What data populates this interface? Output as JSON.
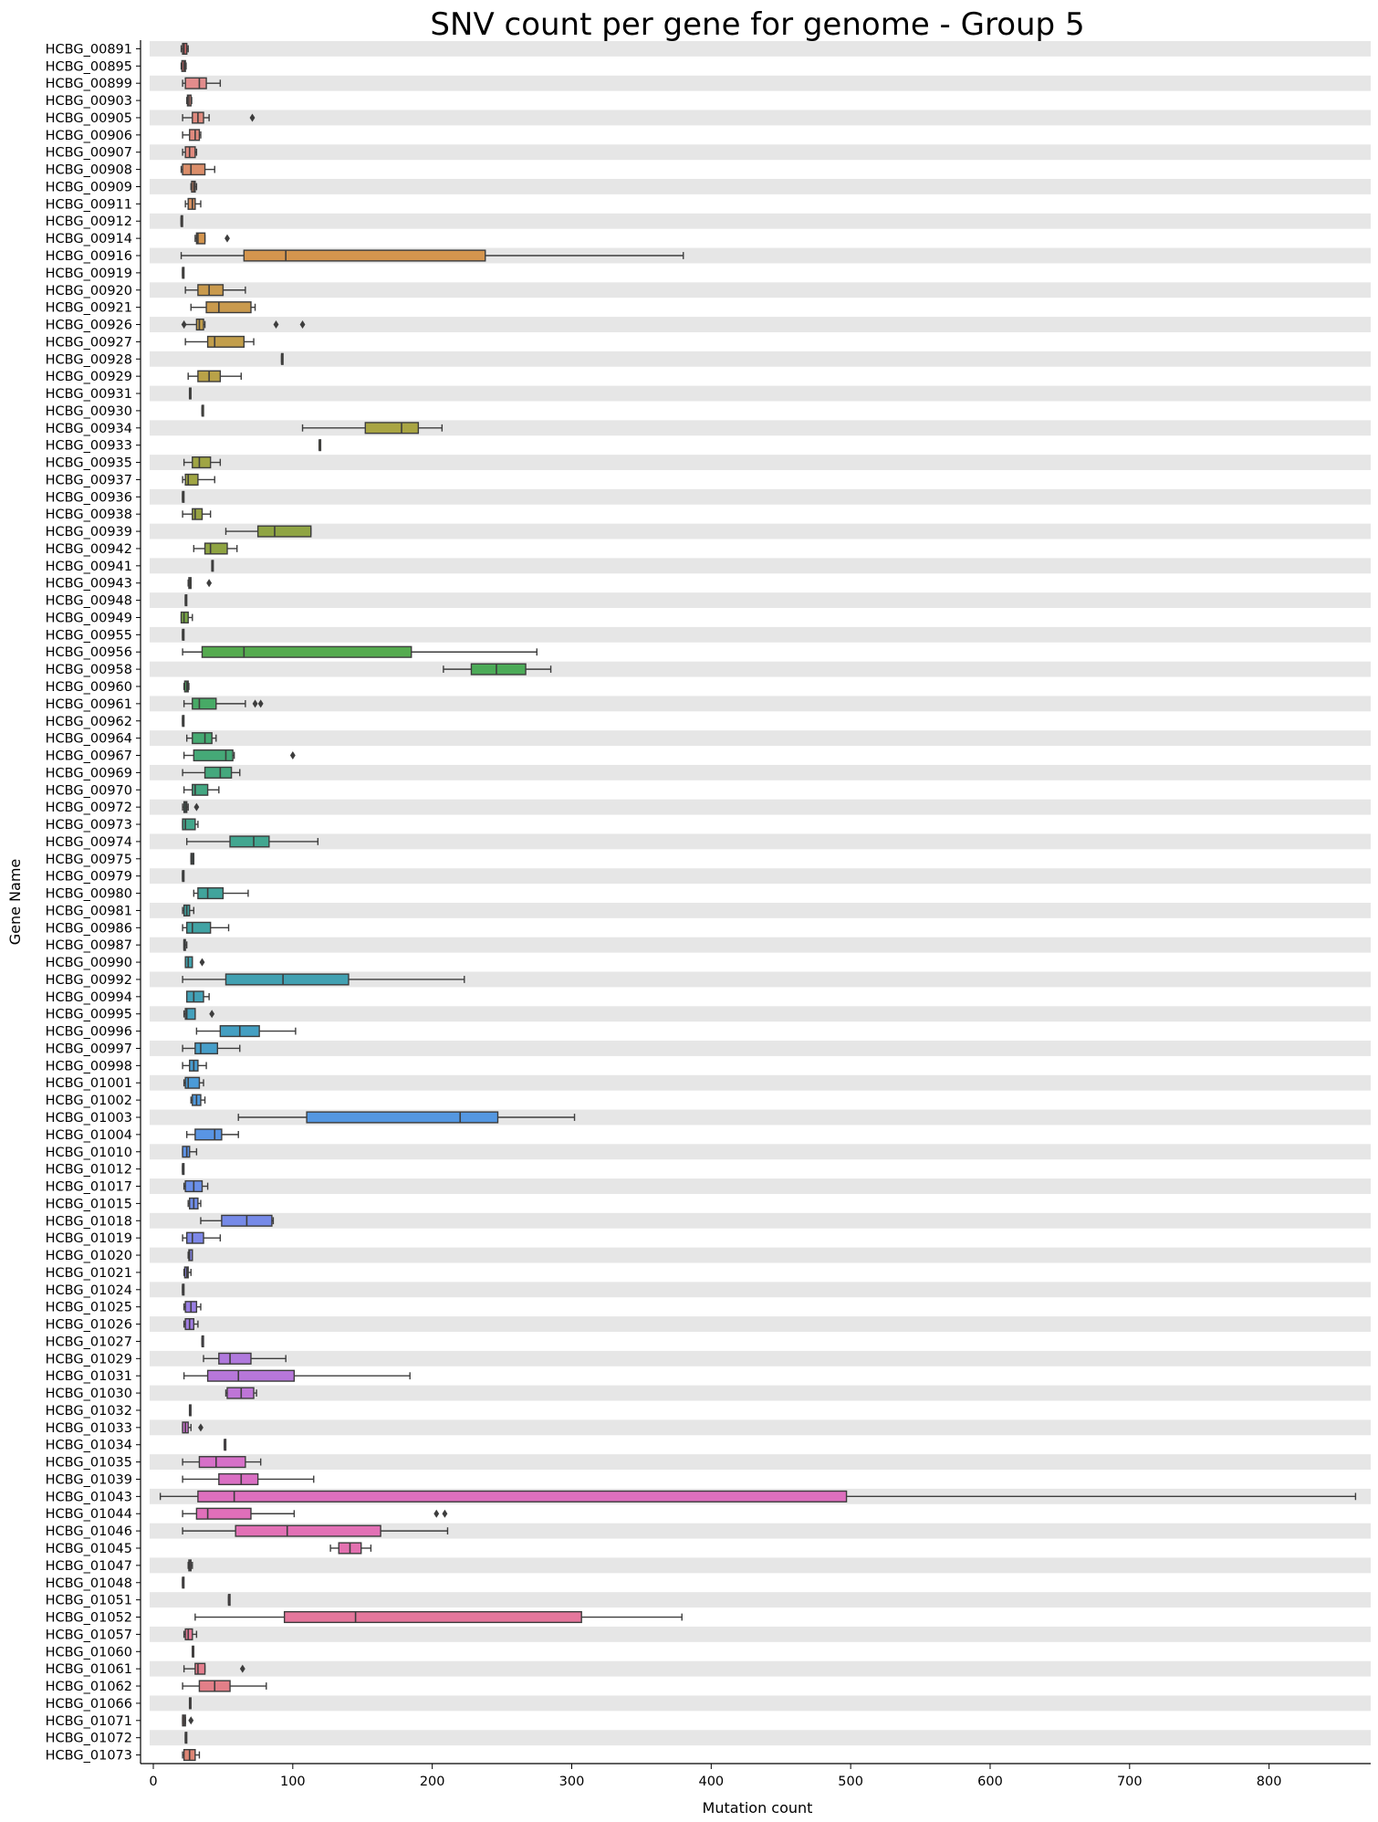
{
  "chart_data": {
    "type": "boxplot",
    "orientation": "horizontal",
    "title": "SNV count per gene for genome - Group 5",
    "xlabel": "Mutation count",
    "ylabel": "Gene Name",
    "xlim": [
      -3,
      870
    ],
    "xticks": [
      0,
      100,
      200,
      300,
      400,
      500,
      600,
      700,
      800
    ],
    "grid": "alternating row bands",
    "legend": "none",
    "categories": [
      "HCBG_00891",
      "HCBG_00895",
      "HCBG_00899",
      "HCBG_00903",
      "HCBG_00905",
      "HCBG_00906",
      "HCBG_00907",
      "HCBG_00908",
      "HCBG_00909",
      "HCBG_00911",
      "HCBG_00912",
      "HCBG_00914",
      "HCBG_00916",
      "HCBG_00919",
      "HCBG_00920",
      "HCBG_00921",
      "HCBG_00926",
      "HCBG_00927",
      "HCBG_00928",
      "HCBG_00929",
      "HCBG_00931",
      "HCBG_00930",
      "HCBG_00934",
      "HCBG_00933",
      "HCBG_00935",
      "HCBG_00937",
      "HCBG_00936",
      "HCBG_00938",
      "HCBG_00939",
      "HCBG_00942",
      "HCBG_00941",
      "HCBG_00943",
      "HCBG_00948",
      "HCBG_00949",
      "HCBG_00955",
      "HCBG_00956",
      "HCBG_00958",
      "HCBG_00960",
      "HCBG_00961",
      "HCBG_00962",
      "HCBG_00964",
      "HCBG_00967",
      "HCBG_00969",
      "HCBG_00970",
      "HCBG_00972",
      "HCBG_00973",
      "HCBG_00974",
      "HCBG_00975",
      "HCBG_00979",
      "HCBG_00980",
      "HCBG_00981",
      "HCBG_00986",
      "HCBG_00987",
      "HCBG_00990",
      "HCBG_00992",
      "HCBG_00994",
      "HCBG_00995",
      "HCBG_00996",
      "HCBG_00997",
      "HCBG_00998",
      "HCBG_01001",
      "HCBG_01002",
      "HCBG_01003",
      "HCBG_01004",
      "HCBG_01010",
      "HCBG_01012",
      "HCBG_01017",
      "HCBG_01015",
      "HCBG_01018",
      "HCBG_01019",
      "HCBG_01020",
      "HCBG_01021",
      "HCBG_01024",
      "HCBG_01025",
      "HCBG_01026",
      "HCBG_01027",
      "HCBG_01029",
      "HCBG_01031",
      "HCBG_01030",
      "HCBG_01032",
      "HCBG_01033",
      "HCBG_01034",
      "HCBG_01035",
      "HCBG_01039",
      "HCBG_01043",
      "HCBG_01044",
      "HCBG_01046",
      "HCBG_01045",
      "HCBG_01047",
      "HCBG_01048",
      "HCBG_01051",
      "HCBG_01052",
      "HCBG_01057",
      "HCBG_01060",
      "HCBG_01061",
      "HCBG_01062",
      "HCBG_01066",
      "HCBG_01071",
      "HCBG_01072",
      "HCBG_01073"
    ],
    "boxes": [
      {
        "wl": 20,
        "q1": 21,
        "med": 22,
        "q3": 24,
        "wh": 25,
        "fliers": [],
        "color": "#cc6666"
      },
      {
        "wl": 20,
        "q1": 20.5,
        "med": 22,
        "q3": 23,
        "wh": 23.5,
        "fliers": [],
        "color": "#cc6666"
      },
      {
        "wl": 21,
        "q1": 23,
        "med": 33,
        "q3": 38,
        "wh": 48,
        "fliers": [],
        "color": "#e38c8c"
      },
      {
        "wl": 24,
        "q1": 24.5,
        "med": 25.5,
        "q3": 27,
        "wh": 27.5,
        "fliers": [],
        "color": "#e08a7e"
      },
      {
        "wl": 21,
        "q1": 28,
        "med": 32,
        "q3": 36,
        "wh": 40,
        "fliers": [
          71
        ],
        "color": "#e08a7e"
      },
      {
        "wl": 21,
        "q1": 26,
        "med": 30,
        "q3": 33,
        "wh": 34,
        "fliers": [],
        "color": "#e08a7e"
      },
      {
        "wl": 21,
        "q1": 23,
        "med": 26,
        "q3": 30,
        "wh": 31,
        "fliers": [],
        "color": "#e08a7e"
      },
      {
        "wl": 20,
        "q1": 21,
        "med": 27,
        "q3": 37,
        "wh": 44,
        "fliers": [],
        "color": "#db8e6a"
      },
      {
        "wl": 27,
        "q1": 27.5,
        "med": 29,
        "q3": 30,
        "wh": 31,
        "fliers": [],
        "color": "#db8e6a"
      },
      {
        "wl": 23,
        "q1": 25,
        "med": 28,
        "q3": 30,
        "wh": 34,
        "fliers": [],
        "color": "#d89161"
      },
      {
        "wl": 20,
        "q1": 20,
        "med": 20,
        "q3": 20,
        "wh": 20,
        "fliers": [],
        "color": "#d89161"
      },
      {
        "wl": 30,
        "q1": 31,
        "med": 32,
        "q3": 37,
        "wh": 37,
        "fliers": [
          53
        ],
        "color": "#d4954e"
      },
      {
        "wl": 20,
        "q1": 65,
        "med": 95,
        "q3": 238,
        "wh": 380,
        "fliers": [],
        "color": "#d4954e"
      },
      {
        "wl": 21,
        "q1": 21,
        "med": 21,
        "q3": 21,
        "wh": 21,
        "fliers": [],
        "color": "#c99a4d"
      },
      {
        "wl": 23,
        "q1": 32,
        "med": 40,
        "q3": 50,
        "wh": 66,
        "fliers": [],
        "color": "#c99a4d"
      },
      {
        "wl": 27,
        "q1": 38,
        "med": 47,
        "q3": 70,
        "wh": 73,
        "fliers": [],
        "color": "#c99a4d"
      },
      {
        "wl": 22,
        "q1": 31,
        "med": 33,
        "q3": 36,
        "wh": 37,
        "fliers": [
          22,
          88,
          107
        ],
        "color": "#c29e4b"
      },
      {
        "wl": 23,
        "q1": 39,
        "med": 44,
        "q3": 65,
        "wh": 72,
        "fliers": [],
        "color": "#c29e4b"
      },
      {
        "wl": 92,
        "q1": 92,
        "med": 92,
        "q3": 92,
        "wh": 92,
        "fliers": [],
        "color": "#b9a248"
      },
      {
        "wl": 25,
        "q1": 32,
        "med": 40,
        "q3": 48,
        "wh": 63,
        "fliers": [],
        "color": "#b9a248"
      },
      {
        "wl": 26,
        "q1": 26,
        "med": 26,
        "q3": 26,
        "wh": 26,
        "fliers": [],
        "color": "#b1a546"
      },
      {
        "wl": 35,
        "q1": 35,
        "med": 35,
        "q3": 35,
        "wh": 35,
        "fliers": [],
        "color": "#b1a546"
      },
      {
        "wl": 107,
        "q1": 152,
        "med": 178,
        "q3": 190,
        "wh": 207,
        "fliers": [],
        "color": "#a9a543"
      },
      {
        "wl": 119,
        "q1": 119,
        "med": 119,
        "q3": 119,
        "wh": 119,
        "fliers": [],
        "color": "#a9a543"
      },
      {
        "wl": 22,
        "q1": 28,
        "med": 33,
        "q3": 41,
        "wh": 48,
        "fliers": [],
        "color": "#a0a543"
      },
      {
        "wl": 21,
        "q1": 23,
        "med": 25,
        "q3": 32,
        "wh": 44,
        "fliers": [],
        "color": "#a0a543"
      },
      {
        "wl": 21,
        "q1": 21,
        "med": 21,
        "q3": 21,
        "wh": 21,
        "fliers": [],
        "color": "#98a443"
      },
      {
        "wl": 21,
        "q1": 28,
        "med": 30,
        "q3": 35,
        "wh": 41,
        "fliers": [],
        "color": "#98a443"
      },
      {
        "wl": 52,
        "q1": 75,
        "med": 87,
        "q3": 113,
        "wh": 113,
        "fliers": [],
        "color": "#8fa443"
      },
      {
        "wl": 29,
        "q1": 37,
        "med": 41,
        "q3": 53,
        "wh": 60,
        "fliers": [],
        "color": "#8fa443"
      },
      {
        "wl": 42,
        "q1": 42,
        "med": 42,
        "q3": 42,
        "wh": 42,
        "fliers": [],
        "color": "#84a543"
      },
      {
        "wl": 25,
        "q1": 25.5,
        "med": 26,
        "q3": 27,
        "wh": 27,
        "fliers": [
          40
        ],
        "color": "#84a543"
      },
      {
        "wl": 23,
        "q1": 23,
        "med": 23,
        "q3": 23,
        "wh": 23,
        "fliers": [],
        "color": "#78a744"
      },
      {
        "wl": 20,
        "q1": 20,
        "med": 22,
        "q3": 25,
        "wh": 28,
        "fliers": [],
        "color": "#78a744"
      },
      {
        "wl": 21,
        "q1": 21,
        "med": 21,
        "q3": 21,
        "wh": 21,
        "fliers": [],
        "color": "#68aa48"
      },
      {
        "wl": 21,
        "q1": 35,
        "med": 65,
        "q3": 185,
        "wh": 275,
        "fliers": [],
        "color": "#55ab4f"
      },
      {
        "wl": 208,
        "q1": 228,
        "med": 246,
        "q3": 267,
        "wh": 285,
        "fliers": [],
        "color": "#4cab58"
      },
      {
        "wl": 22,
        "q1": 22.5,
        "med": 24,
        "q3": 25,
        "wh": 25.5,
        "fliers": [],
        "color": "#4cab5f"
      },
      {
        "wl": 22,
        "q1": 28,
        "med": 33,
        "q3": 45,
        "wh": 66,
        "fliers": [
          73,
          77
        ],
        "color": "#47aa66"
      },
      {
        "wl": 21,
        "q1": 21,
        "med": 21,
        "q3": 21,
        "wh": 21,
        "fliers": [],
        "color": "#47aa6c"
      },
      {
        "wl": 24,
        "q1": 28,
        "med": 37,
        "q3": 42,
        "wh": 45,
        "fliers": [],
        "color": "#46aa72"
      },
      {
        "wl": 22,
        "q1": 29,
        "med": 52,
        "q3": 57,
        "wh": 58,
        "fliers": [
          100
        ],
        "color": "#45a977"
      },
      {
        "wl": 21,
        "q1": 37,
        "med": 48,
        "q3": 56,
        "wh": 62,
        "fliers": [],
        "color": "#44a87d"
      },
      {
        "wl": 22,
        "q1": 28,
        "med": 30,
        "q3": 39,
        "wh": 47,
        "fliers": [],
        "color": "#44a782"
      },
      {
        "wl": 21,
        "q1": 22,
        "med": 23,
        "q3": 24,
        "wh": 25,
        "fliers": [
          31
        ],
        "color": "#43a787"
      },
      {
        "wl": 21,
        "q1": 21,
        "med": 23,
        "q3": 30,
        "wh": 32,
        "fliers": [],
        "color": "#43a68b"
      },
      {
        "wl": 24,
        "q1": 55,
        "med": 72,
        "q3": 83,
        "wh": 118,
        "fliers": [],
        "color": "#42a690"
      },
      {
        "wl": 27,
        "q1": 27,
        "med": 28,
        "q3": 29,
        "wh": 29,
        "fliers": [],
        "color": "#42a594"
      },
      {
        "wl": 21,
        "q1": 21,
        "med": 21,
        "q3": 21,
        "wh": 21,
        "fliers": [],
        "color": "#42a598"
      },
      {
        "wl": 29,
        "q1": 32,
        "med": 39,
        "q3": 50,
        "wh": 68,
        "fliers": [],
        "color": "#41a49c"
      },
      {
        "wl": 21,
        "q1": 22,
        "med": 24,
        "q3": 26,
        "wh": 29,
        "fliers": [],
        "color": "#41a4a0"
      },
      {
        "wl": 21,
        "q1": 24,
        "med": 28,
        "q3": 41,
        "wh": 54,
        "fliers": [],
        "color": "#41a3a4"
      },
      {
        "wl": 22,
        "q1": 22,
        "med": 22,
        "q3": 23,
        "wh": 24,
        "fliers": [],
        "color": "#41a3a9"
      },
      {
        "wl": 23,
        "q1": 23,
        "med": 25,
        "q3": 28,
        "wh": 28,
        "fliers": [
          35
        ],
        "color": "#41a2ad"
      },
      {
        "wl": 21,
        "q1": 52,
        "med": 93,
        "q3": 140,
        "wh": 223,
        "fliers": [],
        "color": "#42a1b2"
      },
      {
        "wl": 24,
        "q1": 24,
        "med": 29,
        "q3": 36,
        "wh": 40,
        "fliers": [],
        "color": "#42a1b7"
      },
      {
        "wl": 22,
        "q1": 23,
        "med": 24,
        "q3": 30,
        "wh": 30,
        "fliers": [
          42
        ],
        "color": "#43a0bc"
      },
      {
        "wl": 31,
        "q1": 48,
        "med": 62,
        "q3": 76,
        "wh": 102,
        "fliers": [],
        "color": "#449fc2"
      },
      {
        "wl": 21,
        "q1": 30,
        "med": 34,
        "q3": 46,
        "wh": 62,
        "fliers": [],
        "color": "#469ec9"
      },
      {
        "wl": 21,
        "q1": 26,
        "med": 29,
        "q3": 32,
        "wh": 38,
        "fliers": [],
        "color": "#489cd0"
      },
      {
        "wl": 22,
        "q1": 23,
        "med": 25,
        "q3": 33,
        "wh": 36,
        "fliers": [],
        "color": "#4b9bd7"
      },
      {
        "wl": 27,
        "q1": 28,
        "med": 31,
        "q3": 34,
        "wh": 37,
        "fliers": [],
        "color": "#4f99dd"
      },
      {
        "wl": 61,
        "q1": 110,
        "med": 220,
        "q3": 247,
        "wh": 302,
        "fliers": [],
        "color": "#5497e1"
      },
      {
        "wl": 24,
        "q1": 30,
        "med": 44,
        "q3": 49,
        "wh": 61,
        "fliers": [],
        "color": "#5995e4"
      },
      {
        "wl": 21,
        "q1": 21,
        "med": 24,
        "q3": 26,
        "wh": 31,
        "fliers": [],
        "color": "#5e93e6"
      },
      {
        "wl": 21,
        "q1": 21,
        "med": 21,
        "q3": 21,
        "wh": 21,
        "fliers": [],
        "color": "#6491e7"
      },
      {
        "wl": 22,
        "q1": 23,
        "med": 29,
        "q3": 35,
        "wh": 39,
        "fliers": [],
        "color": "#6a8fe8"
      },
      {
        "wl": 25,
        "q1": 26,
        "med": 29,
        "q3": 32,
        "wh": 34,
        "fliers": [],
        "color": "#708de8"
      },
      {
        "wl": 34,
        "q1": 49,
        "med": 67,
        "q3": 85,
        "wh": 86,
        "fliers": [],
        "color": "#768ae8"
      },
      {
        "wl": 21,
        "q1": 24,
        "med": 28,
        "q3": 36,
        "wh": 48,
        "fliers": [],
        "color": "#7d88e8"
      },
      {
        "wl": 25,
        "q1": 25.5,
        "med": 26,
        "q3": 28,
        "wh": 28,
        "fliers": [],
        "color": "#8485e7"
      },
      {
        "wl": 22,
        "q1": 22.5,
        "med": 24,
        "q3": 25,
        "wh": 27,
        "fliers": [],
        "color": "#8b83e6"
      },
      {
        "wl": 21,
        "q1": 21,
        "med": 21,
        "q3": 21,
        "wh": 21,
        "fliers": [],
        "color": "#9281e5"
      },
      {
        "wl": 22,
        "q1": 23,
        "med": 27,
        "q3": 31,
        "wh": 34,
        "fliers": [],
        "color": "#9a7fe4"
      },
      {
        "wl": 22,
        "q1": 23,
        "med": 26,
        "q3": 29,
        "wh": 32,
        "fliers": [],
        "color": "#a17de2"
      },
      {
        "wl": 35,
        "q1": 35,
        "med": 35,
        "q3": 35,
        "wh": 35,
        "fliers": [],
        "color": "#a87be0"
      },
      {
        "wl": 36,
        "q1": 47,
        "med": 55,
        "q3": 70,
        "wh": 95,
        "fliers": [],
        "color": "#b079dd"
      },
      {
        "wl": 22,
        "q1": 39,
        "med": 61,
        "q3": 101,
        "wh": 184,
        "fliers": [],
        "color": "#b777da"
      },
      {
        "wl": 52,
        "q1": 53,
        "med": 63,
        "q3": 72,
        "wh": 74,
        "fliers": [],
        "color": "#be75d7"
      },
      {
        "wl": 26,
        "q1": 26,
        "med": 26,
        "q3": 26,
        "wh": 26,
        "fliers": [],
        "color": "#c574d4"
      },
      {
        "wl": 21,
        "q1": 21,
        "med": 23,
        "q3": 25,
        "wh": 27,
        "fliers": [
          34
        ],
        "color": "#cb72d0"
      },
      {
        "wl": 51,
        "q1": 51,
        "med": 51,
        "q3": 51,
        "wh": 51,
        "fliers": [],
        "color": "#d171cc"
      },
      {
        "wl": 21,
        "q1": 33,
        "med": 45,
        "q3": 66,
        "wh": 77,
        "fliers": [],
        "color": "#d670c8"
      },
      {
        "wl": 21,
        "q1": 47,
        "med": 63,
        "q3": 75,
        "wh": 115,
        "fliers": [],
        "color": "#da6fc3"
      },
      {
        "wl": 5,
        "q1": 32,
        "med": 58,
        "q3": 497,
        "wh": 862,
        "fliers": [],
        "color": "#de6fbe"
      },
      {
        "wl": 21,
        "q1": 31,
        "med": 39,
        "q3": 70,
        "wh": 101,
        "fliers": [
          203,
          209
        ],
        "color": "#e06fba"
      },
      {
        "wl": 21,
        "q1": 59,
        "med": 96,
        "q3": 163,
        "wh": 211,
        "fliers": [],
        "color": "#e270b5"
      },
      {
        "wl": 127,
        "q1": 133,
        "med": 141,
        "q3": 149,
        "wh": 156,
        "fliers": [],
        "color": "#e371b0"
      },
      {
        "wl": 25,
        "q1": 25.5,
        "med": 26,
        "q3": 27,
        "wh": 28,
        "fliers": [],
        "color": "#e473ab"
      },
      {
        "wl": 21,
        "q1": 21,
        "med": 21,
        "q3": 21,
        "wh": 21,
        "fliers": [],
        "color": "#e574a6"
      },
      {
        "wl": 54,
        "q1": 54,
        "med": 54,
        "q3": 54,
        "wh": 54,
        "fliers": [],
        "color": "#e575a1"
      },
      {
        "wl": 30,
        "q1": 94,
        "med": 145,
        "q3": 307,
        "wh": 379,
        "fliers": [],
        "color": "#e5779c"
      },
      {
        "wl": 22,
        "q1": 23,
        "med": 25,
        "q3": 28,
        "wh": 31,
        "fliers": [],
        "color": "#e57997"
      },
      {
        "wl": 28,
        "q1": 28,
        "med": 28,
        "q3": 28,
        "wh": 28,
        "fliers": [],
        "color": "#e57b92"
      },
      {
        "wl": 22,
        "q1": 30,
        "med": 32,
        "q3": 37,
        "wh": 37,
        "fliers": [
          64
        ],
        "color": "#e47d8d"
      },
      {
        "wl": 21,
        "q1": 33,
        "med": 44,
        "q3": 55,
        "wh": 81,
        "fliers": [],
        "color": "#e37f88"
      },
      {
        "wl": 26,
        "q1": 26,
        "med": 26,
        "q3": 26,
        "wh": 26,
        "fliers": [],
        "color": "#e28183"
      },
      {
        "wl": 21,
        "q1": 21,
        "med": 22,
        "q3": 23,
        "wh": 23,
        "fliers": [
          27
        ],
        "color": "#e1837e"
      },
      {
        "wl": 23,
        "q1": 23,
        "med": 23,
        "q3": 23,
        "wh": 23,
        "fliers": [],
        "color": "#df8479"
      },
      {
        "wl": 21,
        "q1": 22,
        "med": 26,
        "q3": 30,
        "wh": 33,
        "fliers": [],
        "color": "#de8675"
      }
    ]
  }
}
